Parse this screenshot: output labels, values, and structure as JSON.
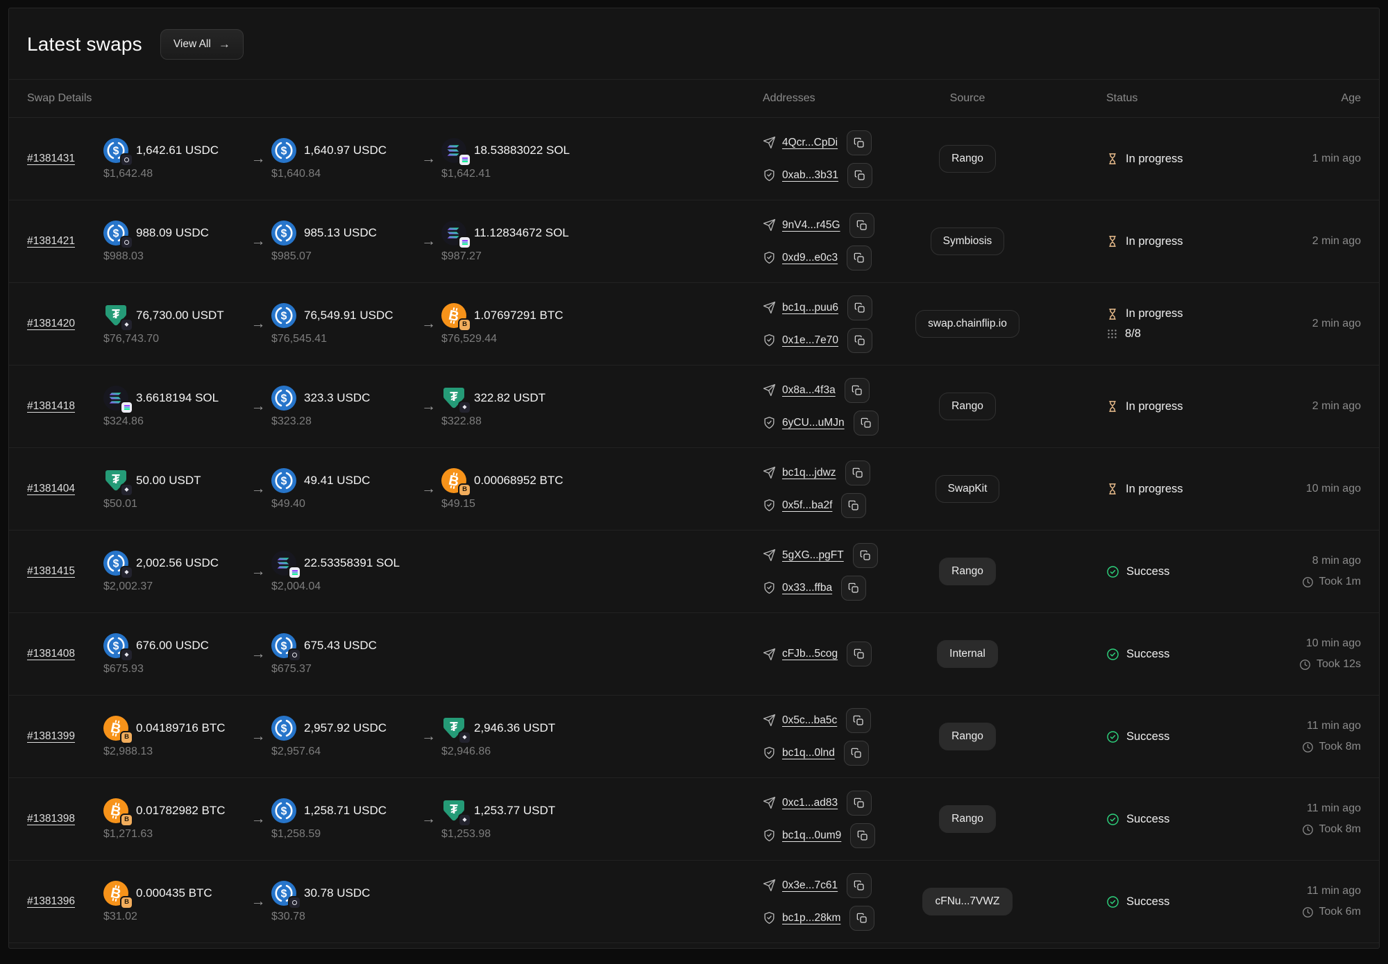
{
  "header": {
    "title": "Latest swaps",
    "view_all": "View All",
    "view_all_arrow": "→"
  },
  "columns": {
    "swap_details": "Swap Details",
    "addresses": "Addresses",
    "source": "Source",
    "status": "Status",
    "age": "Age"
  },
  "glyphs": {
    "arrow_right": "→"
  },
  "colors": {
    "usdc": "#2775CA",
    "usdt": "#259B77",
    "btc": "#F7931A",
    "btc_badge": "#F2AD5C",
    "sol_start": "#9945FF",
    "sol_end": "#14F195",
    "in_progress": "#EBBE8D",
    "success": "#2ED47E"
  },
  "rows": [
    {
      "id": "#1381431",
      "tokens": [
        {
          "icon": "usdc",
          "badge": "dark-circle",
          "amount": "1,642.61 USDC",
          "usd": "$1,642.48"
        },
        {
          "icon": "usdc",
          "badge": "none",
          "amount": "1,640.97 USDC",
          "usd": "$1,640.84"
        },
        {
          "icon": "sol",
          "badge": "white-sol",
          "amount": "18.53883022 SOL",
          "usd": "$1,642.41"
        }
      ],
      "addresses": [
        {
          "kind": "sender",
          "text": "4Qcr...CpDi"
        },
        {
          "kind": "recipient",
          "text": "0xab...3b31"
        }
      ],
      "source": {
        "label": "Rango",
        "variant": "outline"
      },
      "status": {
        "state": "in_progress",
        "label": "In progress"
      },
      "age": {
        "time": "1 min ago"
      }
    },
    {
      "id": "#1381421",
      "tokens": [
        {
          "icon": "usdc",
          "badge": "dark-circle",
          "amount": "988.09 USDC",
          "usd": "$988.03"
        },
        {
          "icon": "usdc",
          "badge": "none",
          "amount": "985.13 USDC",
          "usd": "$985.07"
        },
        {
          "icon": "sol",
          "badge": "white-sol",
          "amount": "11.12834672 SOL",
          "usd": "$987.27"
        }
      ],
      "addresses": [
        {
          "kind": "sender",
          "text": "9nV4...r45G"
        },
        {
          "kind": "recipient",
          "text": "0xd9...e0c3"
        }
      ],
      "source": {
        "label": "Symbiosis",
        "variant": "outline"
      },
      "status": {
        "state": "in_progress",
        "label": "In progress"
      },
      "age": {
        "time": "2 min ago"
      }
    },
    {
      "id": "#1381420",
      "tokens": [
        {
          "icon": "usdt",
          "badge": "dark-diamond",
          "amount": "76,730.00 USDT",
          "usd": "$76,743.70"
        },
        {
          "icon": "usdc",
          "badge": "none",
          "amount": "76,549.91 USDC",
          "usd": "$76,545.41"
        },
        {
          "icon": "btc",
          "badge": "tan-btc",
          "amount": "1.07697291 BTC",
          "usd": "$76,529.44"
        }
      ],
      "addresses": [
        {
          "kind": "sender",
          "text": "bc1q...puu6"
        },
        {
          "kind": "recipient",
          "text": "0x1e...7e70"
        }
      ],
      "source": {
        "label": "swap.chainflip.io",
        "variant": "outline"
      },
      "status": {
        "state": "in_progress",
        "label": "In progress",
        "steps": "8/8"
      },
      "age": {
        "time": "2 min ago"
      }
    },
    {
      "id": "#1381418",
      "tokens": [
        {
          "icon": "sol",
          "badge": "white-sol",
          "amount": "3.6618194 SOL",
          "usd": "$324.86"
        },
        {
          "icon": "usdc",
          "badge": "none",
          "amount": "323.3 USDC",
          "usd": "$323.28"
        },
        {
          "icon": "usdt",
          "badge": "dark-diamond",
          "amount": "322.82 USDT",
          "usd": "$322.88"
        }
      ],
      "addresses": [
        {
          "kind": "sender",
          "text": "0x8a...4f3a"
        },
        {
          "kind": "recipient",
          "text": "6yCU...uMJn"
        }
      ],
      "source": {
        "label": "Rango",
        "variant": "outline"
      },
      "status": {
        "state": "in_progress",
        "label": "In progress"
      },
      "age": {
        "time": "2 min ago"
      }
    },
    {
      "id": "#1381404",
      "tokens": [
        {
          "icon": "usdt",
          "badge": "dark-diamond",
          "amount": "50.00 USDT",
          "usd": "$50.01"
        },
        {
          "icon": "usdc",
          "badge": "none",
          "amount": "49.41 USDC",
          "usd": "$49.40"
        },
        {
          "icon": "btc",
          "badge": "tan-btc",
          "amount": "0.00068952 BTC",
          "usd": "$49.15"
        }
      ],
      "addresses": [
        {
          "kind": "sender",
          "text": "bc1q...jdwz"
        },
        {
          "kind": "recipient",
          "text": "0x5f...ba2f"
        }
      ],
      "source": {
        "label": "SwapKit",
        "variant": "outline"
      },
      "status": {
        "state": "in_progress",
        "label": "In progress"
      },
      "age": {
        "time": "10 min ago"
      }
    },
    {
      "id": "#1381415",
      "tokens": [
        {
          "icon": "usdc",
          "badge": "dark-diamond",
          "amount": "2,002.56 USDC",
          "usd": "$2,002.37"
        },
        {
          "icon": "sol",
          "badge": "white-sol",
          "amount": "22.53358391 SOL",
          "usd": "$2,004.04"
        }
      ],
      "addresses": [
        {
          "kind": "sender",
          "text": "5gXG...pgFT"
        },
        {
          "kind": "recipient",
          "text": "0x33...ffba"
        }
      ],
      "source": {
        "label": "Rango",
        "variant": "filled"
      },
      "status": {
        "state": "success",
        "label": "Success"
      },
      "age": {
        "time": "8 min ago",
        "took": "Took 1m"
      }
    },
    {
      "id": "#1381408",
      "tokens": [
        {
          "icon": "usdc",
          "badge": "dark-diamond",
          "amount": "676.00 USDC",
          "usd": "$675.93"
        },
        {
          "icon": "usdc",
          "badge": "dark-circle",
          "amount": "675.43 USDC",
          "usd": "$675.37"
        }
      ],
      "addresses": [
        {
          "kind": "sender",
          "text": "cFJb...5cog"
        }
      ],
      "source": {
        "label": "Internal",
        "variant": "filled"
      },
      "status": {
        "state": "success",
        "label": "Success"
      },
      "age": {
        "time": "10 min ago",
        "took": "Took 12s"
      }
    },
    {
      "id": "#1381399",
      "tokens": [
        {
          "icon": "btc",
          "badge": "tan-btc",
          "amount": "0.04189716 BTC",
          "usd": "$2,988.13"
        },
        {
          "icon": "usdc",
          "badge": "none",
          "amount": "2,957.92 USDC",
          "usd": "$2,957.64"
        },
        {
          "icon": "usdt",
          "badge": "dark-diamond",
          "amount": "2,946.36 USDT",
          "usd": "$2,946.86"
        }
      ],
      "addresses": [
        {
          "kind": "sender",
          "text": "0x5c...ba5c"
        },
        {
          "kind": "recipient",
          "text": "bc1q...0lnd"
        }
      ],
      "source": {
        "label": "Rango",
        "variant": "filled"
      },
      "status": {
        "state": "success",
        "label": "Success"
      },
      "age": {
        "time": "11 min ago",
        "took": "Took 8m"
      }
    },
    {
      "id": "#1381398",
      "tokens": [
        {
          "icon": "btc",
          "badge": "tan-btc",
          "amount": "0.01782982 BTC",
          "usd": "$1,271.63"
        },
        {
          "icon": "usdc",
          "badge": "none",
          "amount": "1,258.71 USDC",
          "usd": "$1,258.59"
        },
        {
          "icon": "usdt",
          "badge": "dark-diamond",
          "amount": "1,253.77 USDT",
          "usd": "$1,253.98"
        }
      ],
      "addresses": [
        {
          "kind": "sender",
          "text": "0xc1...ad83"
        },
        {
          "kind": "recipient",
          "text": "bc1q...0um9"
        }
      ],
      "source": {
        "label": "Rango",
        "variant": "filled"
      },
      "status": {
        "state": "success",
        "label": "Success"
      },
      "age": {
        "time": "11 min ago",
        "took": "Took 8m"
      }
    },
    {
      "id": "#1381396",
      "tokens": [
        {
          "icon": "btc",
          "badge": "tan-btc",
          "amount": "0.000435 BTC",
          "usd": "$31.02"
        },
        {
          "icon": "usdc",
          "badge": "dark-circle",
          "amount": "30.78 USDC",
          "usd": "$30.78"
        }
      ],
      "addresses": [
        {
          "kind": "sender",
          "text": "0x3e...7c61"
        },
        {
          "kind": "recipient",
          "text": "bc1p...28km"
        }
      ],
      "source": {
        "label": "cFNu...7VWZ",
        "variant": "filled"
      },
      "status": {
        "state": "success",
        "label": "Success"
      },
      "age": {
        "time": "11 min ago",
        "took": "Took 6m"
      }
    }
  ]
}
